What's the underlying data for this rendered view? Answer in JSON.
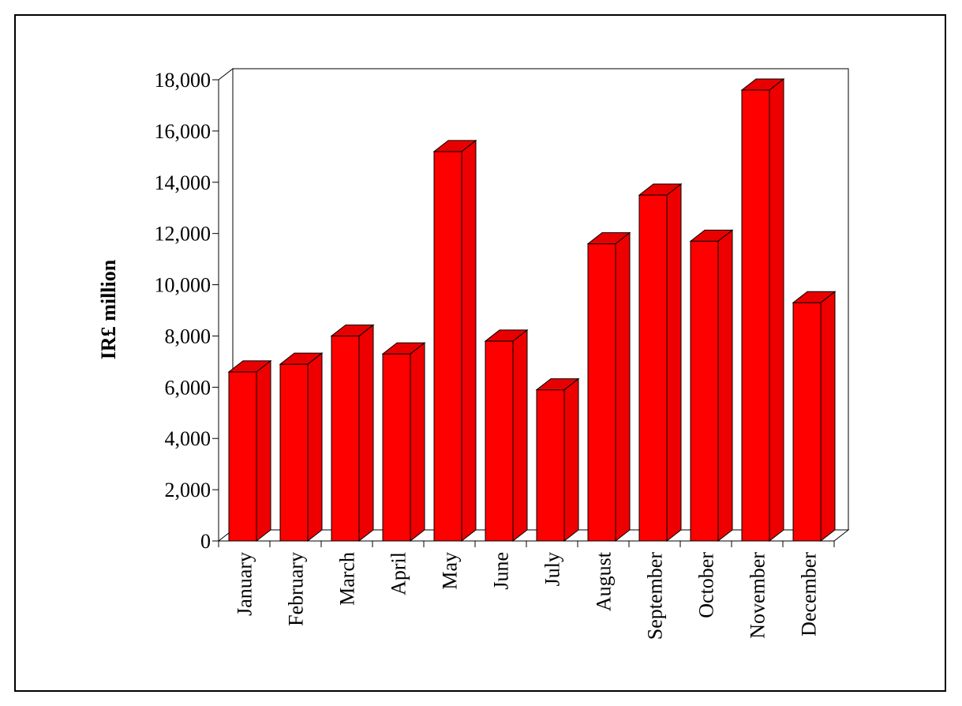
{
  "chart_data": {
    "type": "bar",
    "style": "3d-column",
    "title": "",
    "xlabel": "",
    "ylabel": "IR£ million",
    "categories": [
      "January",
      "February",
      "March",
      "April",
      "May",
      "June",
      "July",
      "August",
      "September",
      "October",
      "November",
      "December"
    ],
    "values": [
      6600,
      6900,
      8000,
      7300,
      15200,
      7800,
      5900,
      11600,
      13500,
      11700,
      17600,
      9300
    ],
    "ylim": [
      0,
      18000
    ],
    "yticks": [
      0,
      2000,
      4000,
      6000,
      8000,
      10000,
      12000,
      14000,
      16000,
      18000
    ],
    "ytick_labels": [
      "0",
      "2,000",
      "4,000",
      "6,000",
      "8,000",
      "10,000",
      "12,000",
      "14,000",
      "16,000",
      "18,000"
    ],
    "grid": false,
    "legend": "none",
    "colors": {
      "bar_front": "#ff0000",
      "bar_top": "#e80000",
      "bar_side": "#ee0000",
      "outline": "#000000"
    }
  }
}
